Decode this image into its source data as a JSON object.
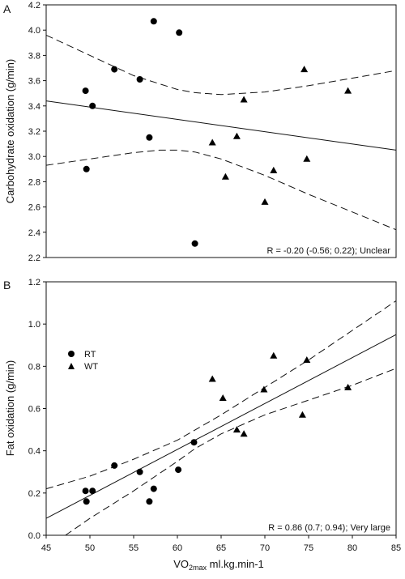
{
  "chart_data": [
    {
      "type": "scatter",
      "panel_label": "A",
      "xlabel": "",
      "ylabel": "Carbohydrate oxidation (g/min)",
      "xlim": [
        45,
        85
      ],
      "ylim": [
        2.2,
        4.2
      ],
      "yticks": [
        2.2,
        2.4,
        2.6,
        2.8,
        3.0,
        3.2,
        3.4,
        3.6,
        3.8,
        4.0,
        4.2
      ],
      "ytick_labels": [
        "2.2",
        "2.4",
        "2.6",
        "2.8",
        "3.0",
        "3.2",
        "3.4",
        "3.6",
        "3.8",
        "4.0",
        "4.2"
      ],
      "annotation": "R = -0.20 (-0.56; 0.22); Unclear",
      "series": [
        {
          "marker": "circle",
          "x": [
            49.5,
            49.6,
            50.3,
            52.8,
            55.7,
            56.8,
            57.3,
            60.2,
            62.0
          ],
          "y": [
            3.52,
            2.9,
            3.4,
            3.69,
            3.61,
            3.15,
            4.07,
            3.98,
            2.31
          ]
        },
        {
          "marker": "triangle",
          "x": [
            64.0,
            65.5,
            66.8,
            67.6,
            70.0,
            71.0,
            74.5,
            74.8,
            79.5
          ],
          "y": [
            3.11,
            2.84,
            3.16,
            3.45,
            2.64,
            2.89,
            3.69,
            2.98,
            3.52
          ]
        }
      ],
      "fit_line": {
        "x": [
          45,
          85
        ],
        "y": [
          3.44,
          3.05
        ]
      },
      "ci_upper": {
        "x": [
          45,
          50,
          55,
          60,
          62,
          65,
          70,
          75,
          80,
          85
        ],
        "y": [
          3.96,
          3.8,
          3.64,
          3.53,
          3.505,
          3.49,
          3.51,
          3.56,
          3.62,
          3.68
        ]
      },
      "ci_lower": {
        "x": [
          45,
          50,
          55,
          58,
          60,
          62,
          65,
          70,
          75,
          80,
          85
        ],
        "y": [
          2.93,
          2.98,
          3.03,
          3.05,
          3.05,
          3.035,
          2.98,
          2.85,
          2.7,
          2.56,
          2.42
        ]
      }
    },
    {
      "type": "scatter",
      "panel_label": "B",
      "xlabel_main": "VO",
      "xlabel_sub": "2max",
      "xlabel_unit": " ml.kg.min-1",
      "ylabel": "Fat oxidation (g/min)",
      "xlim": [
        45,
        85
      ],
      "ylim": [
        0.0,
        1.2
      ],
      "xticks": [
        45,
        50,
        55,
        60,
        65,
        70,
        75,
        80,
        85
      ],
      "xtick_labels": [
        "45",
        "50",
        "55",
        "60",
        "65",
        "70",
        "75",
        "80",
        "85"
      ],
      "yticks": [
        0.0,
        0.2,
        0.4,
        0.6,
        0.8,
        1.0,
        1.2
      ],
      "ytick_labels": [
        "0.0",
        "0.2",
        "0.4",
        "0.6",
        "0.8",
        "1.0",
        "1.2"
      ],
      "annotation": "R = 0.86 (0.7; 0.94); Very large",
      "legend": [
        {
          "label": "RT",
          "marker": "circle"
        },
        {
          "label": "WT",
          "marker": "triangle"
        }
      ],
      "series": [
        {
          "name": "RT",
          "marker": "circle",
          "x": [
            49.5,
            49.6,
            50.3,
            52.8,
            55.7,
            56.8,
            57.3,
            60.1,
            61.9
          ],
          "y": [
            0.21,
            0.16,
            0.21,
            0.33,
            0.3,
            0.16,
            0.22,
            0.31,
            0.44
          ]
        },
        {
          "name": "WT",
          "marker": "triangle",
          "x": [
            64.0,
            65.2,
            66.8,
            67.6,
            69.9,
            71.0,
            74.3,
            74.8,
            79.5
          ],
          "y": [
            0.74,
            0.65,
            0.5,
            0.48,
            0.69,
            0.85,
            0.57,
            0.83,
            0.7
          ]
        }
      ],
      "fit_line": {
        "x": [
          45,
          85
        ],
        "y": [
          0.08,
          0.95
        ]
      },
      "ci_upper": {
        "x": [
          45,
          50,
          55,
          60,
          65,
          70,
          75,
          80,
          85
        ],
        "y": [
          0.22,
          0.28,
          0.36,
          0.45,
          0.57,
          0.7,
          0.83,
          0.97,
          1.11
        ]
      },
      "ci_lower": {
        "x": [
          47.2,
          50,
          55,
          60,
          62,
          65,
          70,
          75,
          80,
          85
        ],
        "y": [
          0.0,
          0.08,
          0.21,
          0.35,
          0.41,
          0.48,
          0.57,
          0.64,
          0.71,
          0.79
        ]
      }
    }
  ]
}
